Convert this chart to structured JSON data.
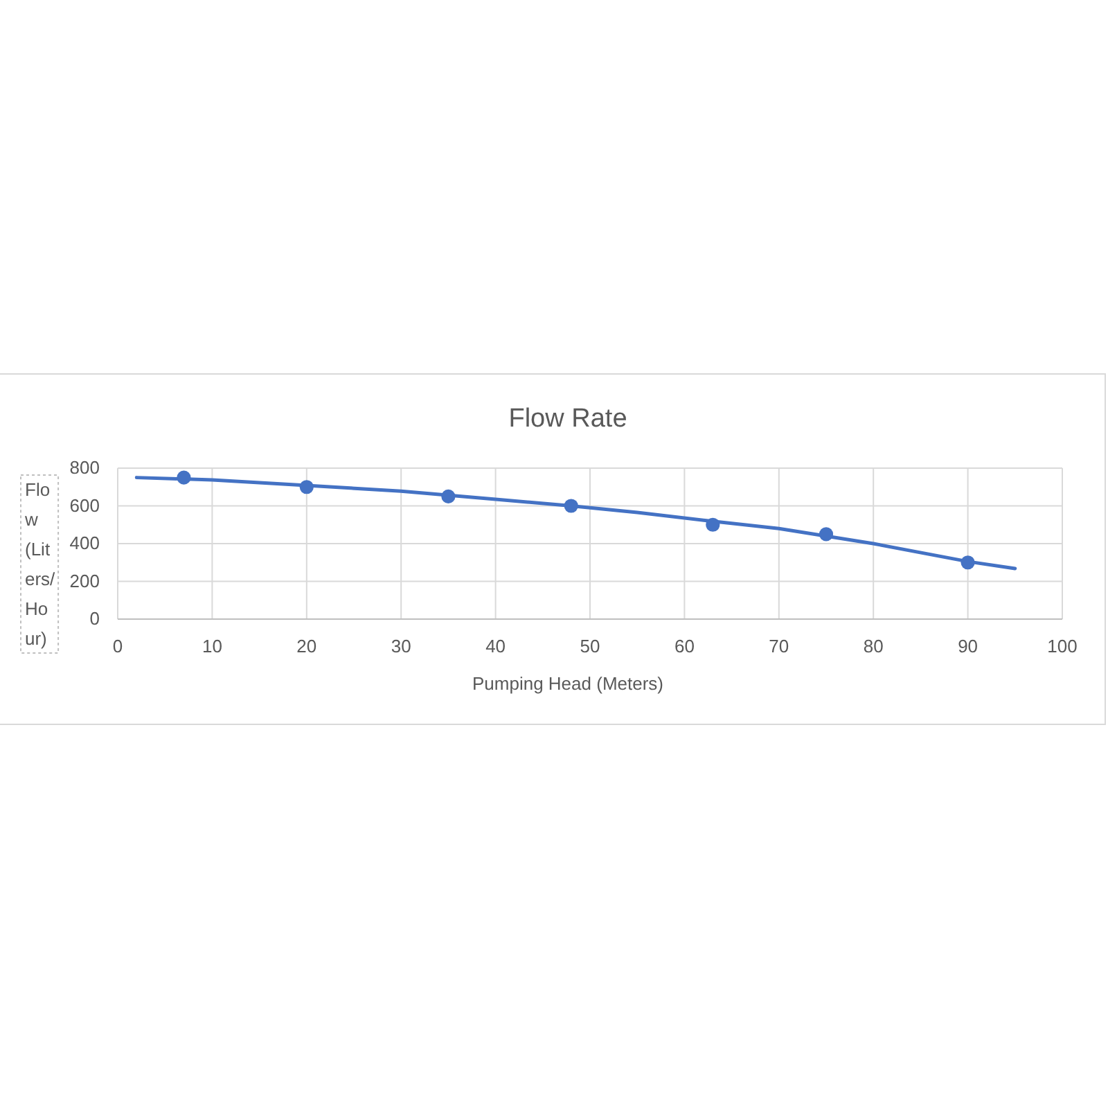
{
  "chart_data": {
    "type": "scatter",
    "title": "Flow Rate",
    "xlabel": "Pumping Head (Meters)",
    "ylabel": "Flow (Liters/Hour)",
    "xlim": [
      0,
      100
    ],
    "xticks": [
      0,
      10,
      20,
      30,
      40,
      50,
      60,
      70,
      80,
      90,
      100
    ],
    "ylim": [
      0,
      800
    ],
    "yticks": [
      0,
      200,
      400,
      600,
      800
    ],
    "grid": true,
    "series": [
      {
        "color": "#4472c4",
        "marker": "circle",
        "x": [
          7,
          20,
          35,
          48,
          63,
          75,
          90
        ],
        "values": [
          750,
          700,
          650,
          600,
          500,
          450,
          300
        ]
      },
      {
        "type": "line",
        "color": "#4472c4",
        "marker": "none",
        "line_style": "solid",
        "x": [
          2,
          10,
          20,
          30,
          40,
          48,
          55,
          63,
          70,
          80,
          90,
          95
        ],
        "values": [
          750,
          738,
          708,
          678,
          635,
          600,
          565,
          518,
          480,
          400,
          305,
          268
        ]
      }
    ]
  }
}
